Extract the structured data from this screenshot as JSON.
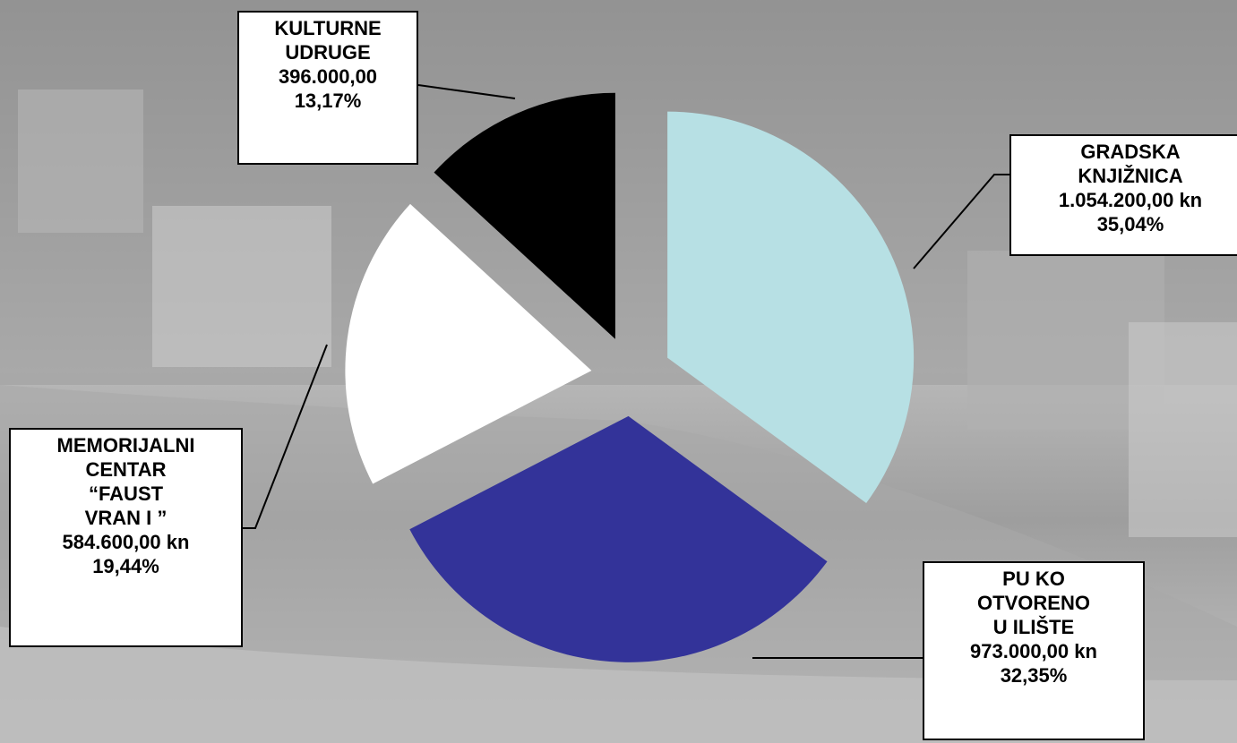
{
  "chart_data": {
    "type": "pie",
    "categories": [
      [
        "GRADSKA",
        "KNJIŽNICA"
      ],
      [
        "PU  KO",
        "OTVORENO",
        "U  ILIŠTE"
      ],
      [
        "MEMORIJALNI",
        "CENTAR",
        "“FAUST",
        "VRAN  I  ”"
      ],
      [
        "KULTURNE",
        "UDRUGE"
      ]
    ],
    "values": [
      1054200,
      973000,
      584600,
      396000
    ],
    "value_labels": [
      "1.054.200,00 kn",
      "973.000,00 kn",
      "584.600,00 kn",
      "396.000,00"
    ],
    "percents": [
      35.04,
      32.35,
      19.44,
      13.17
    ],
    "percent_labels": [
      "35,04%",
      "32,35%",
      "19,44%",
      "13,17%"
    ],
    "colors": [
      "#b7e0e4",
      "#333399",
      "#ffffff",
      "#000000"
    ],
    "exploded": true
  }
}
